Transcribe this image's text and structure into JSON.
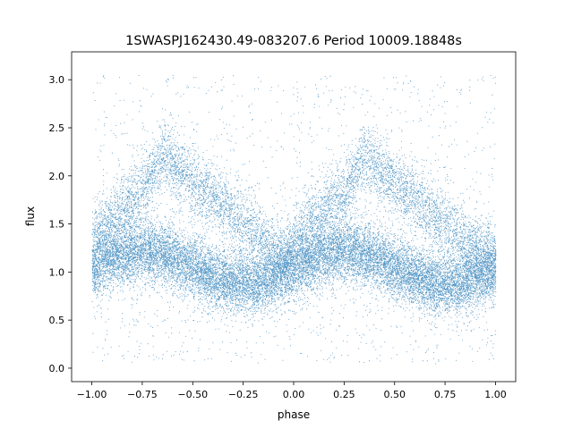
{
  "chart_data": {
    "type": "scatter",
    "title": "1SWASPJ162430.49-083207.6 Period 10009.18848s",
    "xlabel": "phase",
    "ylabel": "flux",
    "xlim": [
      -1.1,
      1.1
    ],
    "ylim": [
      -0.14,
      3.29
    ],
    "x_ticks": [
      -1.0,
      -0.75,
      -0.5,
      -0.25,
      0.0,
      0.25,
      0.5,
      0.75,
      1.0
    ],
    "x_tick_labels": [
      "−1.00",
      "−0.75",
      "−0.50",
      "−0.25",
      "0.00",
      "0.25",
      "0.50",
      "0.75",
      "1.00"
    ],
    "y_ticks": [
      0.0,
      0.5,
      1.0,
      1.5,
      2.0,
      2.5,
      3.0
    ],
    "y_tick_labels": [
      "0.0",
      "0.5",
      "1.0",
      "1.5",
      "2.0",
      "2.5",
      "3.0"
    ],
    "grid": false,
    "legend": "none",
    "marker_color": "#1f77b4",
    "series": [
      {
        "description_points": [
          {
            "phase": -1.0,
            "flux": 1.2
          },
          {
            "phase": -0.75,
            "flux": 1.2
          },
          {
            "phase": -0.65,
            "flux": 2.2
          },
          {
            "phase": -0.5,
            "flux": 1.95
          },
          {
            "phase": -0.25,
            "flux": 1.5
          },
          {
            "phase": 0.0,
            "flux": 1.1
          },
          {
            "phase": 0.25,
            "flux": 1.2
          },
          {
            "phase": 0.35,
            "flux": 2.2
          },
          {
            "phase": 0.5,
            "flux": 1.95
          },
          {
            "phase": 0.75,
            "flux": 1.5
          },
          {
            "phase": 1.0,
            "flux": 1.1
          }
        ]
      }
    ]
  }
}
